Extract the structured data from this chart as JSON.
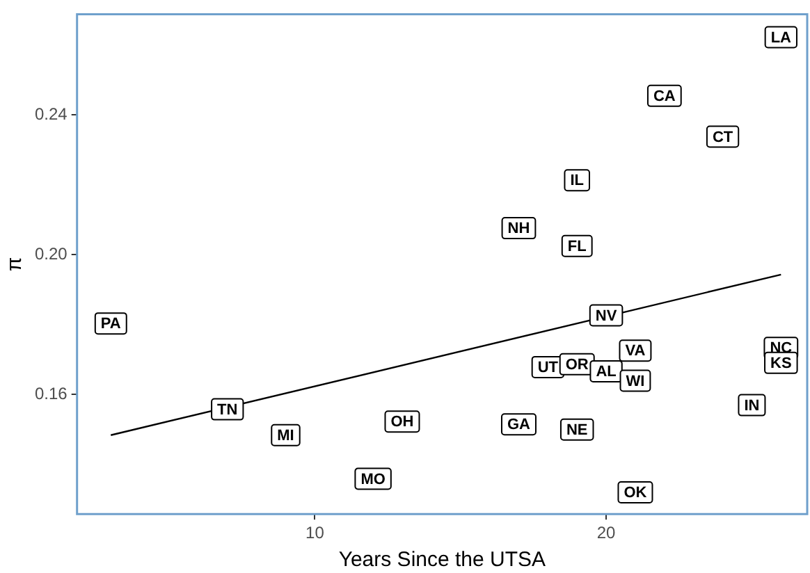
{
  "chart_data": {
    "type": "scatter",
    "xlabel": "Years Since the UTSA",
    "ylabel": "π",
    "xlim": [
      1.84,
      26.9
    ],
    "ylim": [
      0.1257,
      0.2689
    ],
    "xticks": [
      10,
      20
    ],
    "yticks": [
      0.16,
      {
        "value": 0.2,
        "label": "0.20"
      },
      0.24
    ],
    "grid": false,
    "legend": false,
    "series": [
      {
        "color": "#000000",
        "marker": "square",
        "x": [
          3,
          7,
          9,
          12,
          13,
          17,
          19,
          21,
          18,
          19,
          20,
          21,
          21,
          20,
          26,
          26,
          25,
          17,
          19,
          19,
          22,
          24,
          26
        ],
        "values": [
          0.1803,
          0.1557,
          0.1483,
          0.1358,
          0.1522,
          0.1514,
          0.1499,
          0.1319,
          0.1678,
          0.1686,
          0.1666,
          0.1725,
          0.1639,
          0.1826,
          0.1733,
          0.169,
          0.1569,
          0.2076,
          0.2025,
          0.2213,
          0.2455,
          0.2338,
          0.2623
        ],
        "value_labels": [
          "PA",
          "TN",
          "MI",
          "MO",
          "OH",
          "GA",
          "NE",
          "OK",
          "UT",
          "OR",
          "AL",
          "VA",
          "WI",
          "NV",
          "NC",
          "KS",
          "IN",
          "NH",
          "FL",
          "IL",
          "CA",
          "CT",
          "LA"
        ]
      },
      {
        "type": "line",
        "color": "#000000",
        "marker": "none",
        "x": [
          3,
          26
        ],
        "values": [
          0.1483,
          0.1943
        ]
      }
    ]
  }
}
